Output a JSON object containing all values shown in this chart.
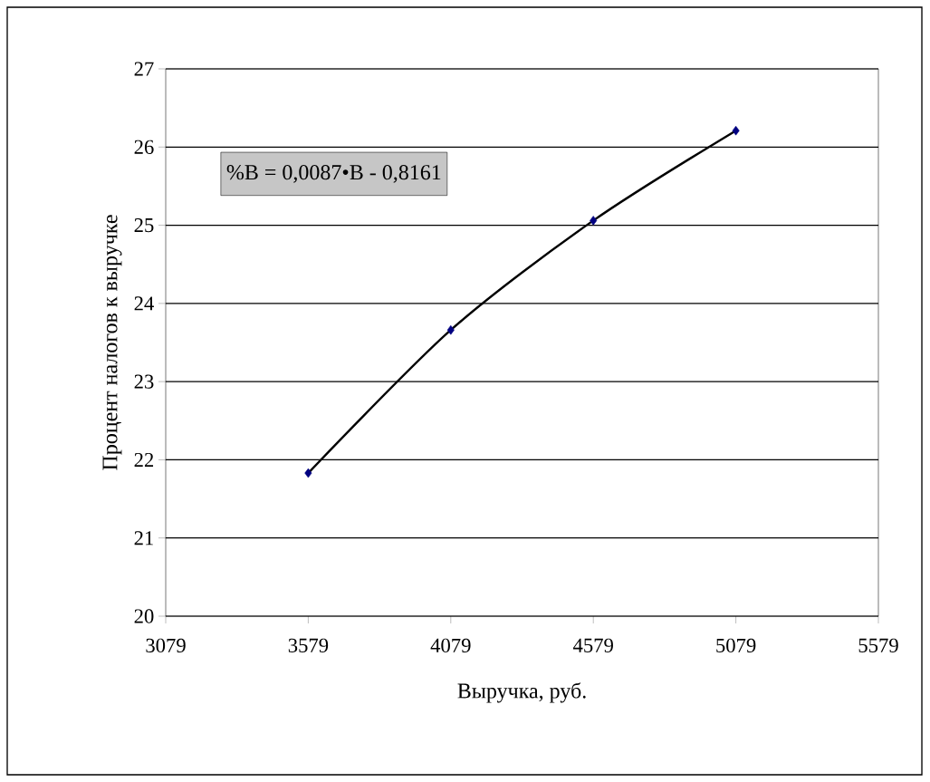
{
  "chart_data": {
    "type": "scatter",
    "xlabel": "Выручка, руб.",
    "ylabel": "Процент налогов к выручке",
    "xlim": [
      3079,
      5579
    ],
    "xticks": [
      3079,
      3579,
      4079,
      4579,
      5079,
      5579
    ],
    "ylim": [
      20,
      27
    ],
    "yticks": [
      20,
      21,
      22,
      23,
      24,
      25,
      26,
      27
    ],
    "grid": "y",
    "annotations": [
      "%В = 0,0087•В - 0,8161"
    ],
    "series": [
      {
        "color": "#000080",
        "marker": "diamond",
        "x": [
          3579,
          4079,
          4579,
          5079
        ],
        "values": [
          21.83,
          23.66,
          25.06,
          26.21
        ]
      },
      {
        "type": "line",
        "color": "#000000",
        "marker": "none",
        "line_style": "solid",
        "x": [
          3579,
          4079,
          4579,
          5079
        ],
        "values": [
          21.83,
          23.66,
          25.06,
          26.21
        ]
      }
    ]
  }
}
